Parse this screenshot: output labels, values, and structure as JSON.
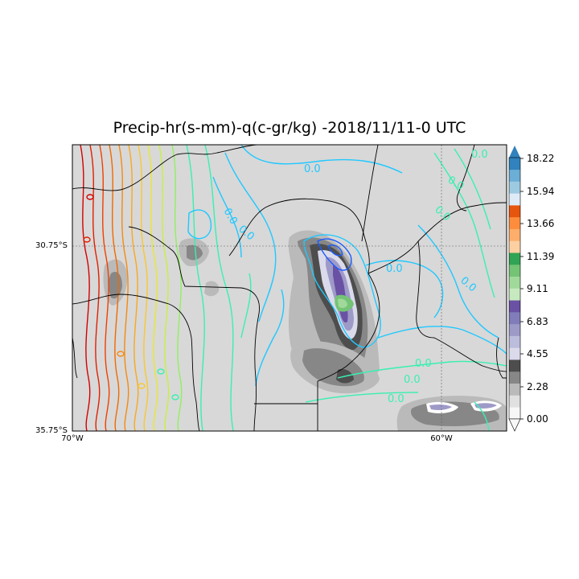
{
  "title": "Precip-hr(s-mm)-q(c-gr/kg) -2018/11/11-0 UTC",
  "axes": {
    "lat_ticks": [
      "30.75°S",
      "35.75°S"
    ],
    "lon_ticks": [
      "70°W",
      "60°W"
    ]
  },
  "contour_labels": [
    "0.0",
    "0.0",
    "0.0",
    "0.0",
    "0.0",
    "0.0",
    "0.0",
    "0.0",
    "0.0",
    "0.0",
    "0.0"
  ],
  "colorbar": {
    "ticks": [
      "18.22",
      "15.94",
      "13.66",
      "11.39",
      "9.11",
      "6.83",
      "4.55",
      "2.28",
      "0.00"
    ],
    "colors": [
      "#f7f7f7",
      "#e0e0e0",
      "#bababa",
      "#878787",
      "#4d4d4d",
      "#dadaeb",
      "#bcbddc",
      "#9e9ac8",
      "#807dba",
      "#6a51a3",
      "#c7e9c0",
      "#a1d99b",
      "#74c476",
      "#31a354",
      "#fdd0a2",
      "#fdae6b",
      "#fd8d3c",
      "#e6550d",
      "#deebf7",
      "#9ecae1",
      "#6baed6",
      "#3182bd"
    ],
    "extend_color": "#3182bd"
  },
  "colors": {
    "land": "#d8d8d8",
    "precip_dark": "#4d4d4d",
    "precip_mid": "#878787",
    "precip_purple": "#807dba",
    "contour_cyan": "#1fc8ff",
    "contour_blue": "#1a5cff",
    "contour_teal": "#39f0b0",
    "contour_red": "#d40000",
    "contour_orange": "#f06a00",
    "contour_yellow": "#e8e830"
  }
}
